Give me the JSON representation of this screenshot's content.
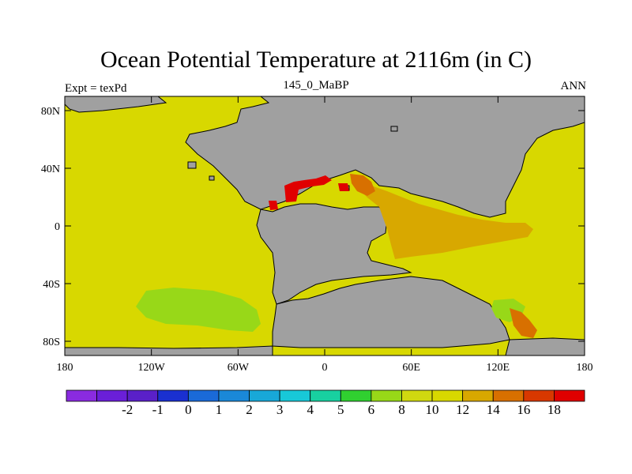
{
  "title": "Ocean Potential Temperature at 2116m (in C)",
  "subtitle": "145_0_MaBP",
  "left_string": "Expt = texPd",
  "right_string": "ANN",
  "map": {
    "lat_ticks": [
      "80N",
      "40N",
      "0",
      "40S",
      "80S"
    ],
    "lon_ticks": [
      "180",
      "120W",
      "60W",
      "0",
      "60E",
      "120E",
      "180"
    ],
    "lon_range": [
      -180,
      180
    ],
    "lat_range": [
      -90,
      90
    ],
    "land_color": "#a0a0a0",
    "coastline_color": "#000000"
  },
  "colorbar": {
    "colors": [
      "#8a2be0",
      "#6a1fd8",
      "#5a20c8",
      "#1a30d0",
      "#1a6ad8",
      "#1a88d8",
      "#18a8d8",
      "#18c8d8",
      "#18d0a0",
      "#30d030",
      "#98d818",
      "#d0d810",
      "#d8d800",
      "#d8a800",
      "#d87000",
      "#d83800",
      "#e00000"
    ],
    "labels": [
      "-2",
      "-1",
      "0",
      "1",
      "2",
      "3",
      "4",
      "5",
      "6",
      "8",
      "10",
      "12",
      "14",
      "16",
      "18"
    ]
  }
}
